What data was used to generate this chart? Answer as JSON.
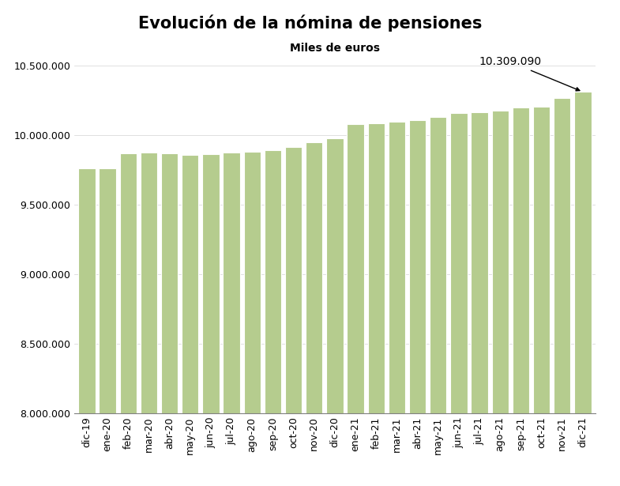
{
  "title": "Evolución de la nómina de pensiones",
  "subtitle": "Miles de euros",
  "categories": [
    "dic-19",
    "ene-20",
    "feb-20",
    "mar-20",
    "abr-20",
    "may-20",
    "jun-20",
    "jul-20",
    "ago-20",
    "sep-20",
    "oct-20",
    "nov-20",
    "dic-20",
    "ene-21",
    "feb-21",
    "mar-21",
    "abr-21",
    "may-21",
    "jun-21",
    "jul-21",
    "ago-21",
    "sep-21",
    "oct-21",
    "nov-21",
    "dic-21"
  ],
  "values": [
    9762000,
    9758000,
    9870000,
    9875000,
    9870000,
    9855000,
    9860000,
    9875000,
    9880000,
    9890000,
    9910000,
    9945000,
    9975000,
    10080000,
    10085000,
    10095000,
    10105000,
    10130000,
    10155000,
    10165000,
    10175000,
    10195000,
    10205000,
    10265000,
    10309090
  ],
  "bar_color": "#b5cc8e",
  "bar_edge_color": "white",
  "ylim": [
    8000000,
    10550000
  ],
  "yticks": [
    8000000,
    8500000,
    9000000,
    9500000,
    10000000,
    10500000
  ],
  "annotation_value": "10.309.090",
  "annotation_index": 24,
  "background_color": "#ffffff",
  "title_fontsize": 15,
  "subtitle_fontsize": 10,
  "tick_fontsize": 9
}
